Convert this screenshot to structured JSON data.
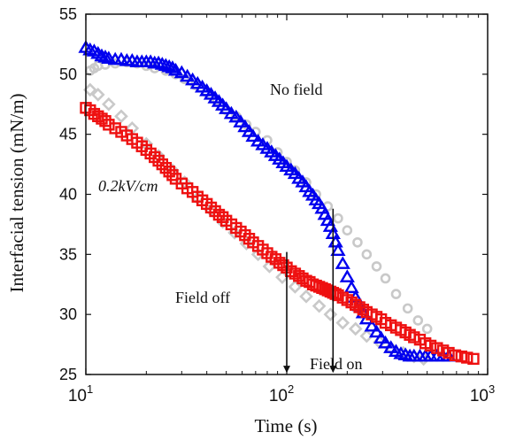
{
  "chart_data": {
    "type": "scatter",
    "xscale": "log",
    "xlabel": "Time (s)",
    "ylabel": "Interfacial tension (mN/m)",
    "xlim": [
      10,
      1000
    ],
    "ylim": [
      25,
      55
    ],
    "xticks": [
      {
        "value": 10,
        "base": "10",
        "exp": "1"
      },
      {
        "value": 100,
        "base": "10",
        "exp": "2"
      },
      {
        "value": 1000,
        "base": "10",
        "exp": "3"
      }
    ],
    "yticks": [
      25,
      30,
      35,
      40,
      45,
      50,
      55
    ],
    "annotations": {
      "no_field": "No field",
      "field_strength": "0.2kV/cm",
      "field_off": "Field off",
      "field_on": "Field on"
    },
    "arrows": [
      {
        "x": 100,
        "y_from": 35.2,
        "y_to": 25.2
      },
      {
        "x": 170,
        "y_from": 38.8,
        "y_to": 25.2
      }
    ],
    "series": [
      {
        "marker": "circle",
        "color": "#c9c9c9",
        "x": [
          10.5,
          11,
          11.5,
          12.5,
          14,
          16,
          18,
          20,
          22,
          25,
          28,
          31,
          35,
          40,
          45,
          50,
          56,
          63,
          70,
          80,
          90,
          100,
          110,
          125,
          140,
          160,
          180,
          200,
          225,
          250,
          280,
          310,
          350,
          400,
          450,
          500
        ],
        "y": [
          50.3,
          50.5,
          50.7,
          50.8,
          50.9,
          51.0,
          50.9,
          50.7,
          50.5,
          50.3,
          50.0,
          49.6,
          49.1,
          48.5,
          47.8,
          47.0,
          46.5,
          45.8,
          45.2,
          44.5,
          43.5,
          42.7,
          42.0,
          41.0,
          40.0,
          39.0,
          38.0,
          37.0,
          36.0,
          35.0,
          34.0,
          33.0,
          31.7,
          30.5,
          29.5,
          28.8
        ]
      },
      {
        "marker": "diamond",
        "color": "#c9c9c9",
        "x": [
          10.5,
          11.5,
          13,
          15,
          17,
          20,
          23,
          27,
          31,
          36,
          42,
          48,
          55,
          63,
          72,
          82,
          95,
          110,
          125,
          145,
          165,
          190,
          220,
          250,
          290,
          330,
          380,
          430,
          480
        ],
        "y": [
          48.7,
          48.3,
          47.5,
          46.5,
          45.5,
          44.2,
          43.2,
          42.0,
          41.0,
          39.7,
          38.7,
          37.7,
          36.8,
          35.9,
          35.0,
          34.0,
          33.1,
          32.3,
          31.5,
          30.7,
          30.0,
          29.3,
          28.8,
          28.2,
          27.7,
          27.2,
          26.8,
          26.5,
          26.3
        ]
      },
      {
        "marker": "triangle",
        "color": "#0000ee",
        "x": [
          10,
          10.5,
          11,
          11.5,
          12,
          12.5,
          13,
          14,
          15,
          16,
          17,
          18,
          19,
          20,
          21,
          22,
          23,
          24,
          25,
          26,
          27,
          28,
          30,
          32,
          34,
          36,
          38,
          40,
          42,
          44,
          46,
          48,
          50,
          53,
          56,
          59,
          62,
          65,
          68,
          72,
          76,
          80,
          84,
          88,
          92,
          96,
          100,
          105,
          110,
          115,
          120,
          125,
          130,
          135,
          140,
          145,
          150,
          155,
          160,
          165,
          170,
          175,
          180,
          190,
          200,
          210,
          220,
          230,
          240,
          250,
          265,
          280,
          295,
          310,
          330,
          350,
          370,
          390,
          410,
          430,
          460,
          490,
          520,
          560,
          600,
          640
        ],
        "y": [
          52.2,
          52.0,
          51.9,
          51.7,
          51.5,
          51.4,
          51.3,
          51.2,
          51.2,
          51.1,
          51.1,
          51.0,
          51.0,
          51.0,
          51.0,
          50.9,
          50.9,
          50.8,
          50.7,
          50.6,
          50.5,
          50.3,
          50.1,
          49.8,
          49.5,
          49.2,
          48.9,
          48.6,
          48.3,
          48.0,
          47.7,
          47.4,
          47.1,
          46.7,
          46.4,
          46.0,
          45.6,
          45.2,
          44.8,
          44.4,
          44.1,
          43.8,
          43.5,
          43.2,
          42.9,
          42.6,
          42.3,
          42.0,
          41.7,
          41.3,
          41.0,
          40.6,
          40.2,
          39.9,
          39.5,
          39.2,
          38.8,
          38.3,
          37.8,
          37.3,
          36.7,
          36.0,
          35.3,
          34.2,
          33.1,
          32.2,
          31.4,
          30.7,
          30.1,
          29.6,
          29.0,
          28.5,
          28.0,
          27.6,
          27.2,
          26.9,
          26.7,
          26.6,
          26.5,
          26.5,
          26.5,
          26.5,
          26.5,
          26.5,
          26.5,
          26.5
        ]
      },
      {
        "marker": "square",
        "color": "#ee1111",
        "x": [
          10,
          10.5,
          11,
          11.5,
          12,
          12.5,
          13,
          14,
          15,
          16,
          17,
          18,
          19,
          20,
          21,
          22,
          23,
          24,
          25,
          26,
          27,
          28,
          30,
          32,
          34,
          36,
          38,
          40,
          42,
          44,
          46,
          48,
          50,
          53,
          56,
          59,
          62,
          65,
          68,
          72,
          76,
          80,
          84,
          88,
          92,
          96,
          100,
          105,
          110,
          115,
          120,
          125,
          130,
          135,
          140,
          145,
          150,
          155,
          160,
          165,
          170,
          175,
          180,
          190,
          200,
          210,
          220,
          230,
          240,
          250,
          265,
          280,
          295,
          310,
          330,
          350,
          370,
          390,
          410,
          430,
          460,
          490,
          520,
          560,
          600,
          640,
          690,
          740,
          790,
          850
        ],
        "y": [
          47.2,
          47.0,
          46.7,
          46.5,
          46.3,
          46.1,
          45.8,
          45.5,
          45.2,
          44.9,
          44.6,
          44.3,
          44.0,
          43.7,
          43.4,
          43.1,
          42.8,
          42.5,
          42.2,
          41.9,
          41.6,
          41.3,
          40.9,
          40.5,
          40.2,
          39.8,
          39.5,
          39.2,
          38.9,
          38.6,
          38.3,
          38.1,
          37.8,
          37.5,
          37.2,
          36.9,
          36.6,
          36.3,
          36.0,
          35.7,
          35.4,
          35.1,
          34.8,
          34.6,
          34.3,
          34.1,
          33.9,
          33.6,
          33.4,
          33.2,
          33.0,
          32.8,
          32.7,
          32.5,
          32.4,
          32.3,
          32.2,
          32.1,
          32.0,
          31.9,
          31.8,
          31.7,
          31.6,
          31.4,
          31.2,
          31.0,
          30.8,
          30.6,
          30.4,
          30.2,
          30.0,
          29.8,
          29.6,
          29.3,
          29.1,
          28.9,
          28.7,
          28.5,
          28.3,
          28.1,
          27.9,
          27.6,
          27.4,
          27.2,
          27.0,
          26.8,
          26.6,
          26.5,
          26.4,
          26.3
        ]
      }
    ]
  }
}
